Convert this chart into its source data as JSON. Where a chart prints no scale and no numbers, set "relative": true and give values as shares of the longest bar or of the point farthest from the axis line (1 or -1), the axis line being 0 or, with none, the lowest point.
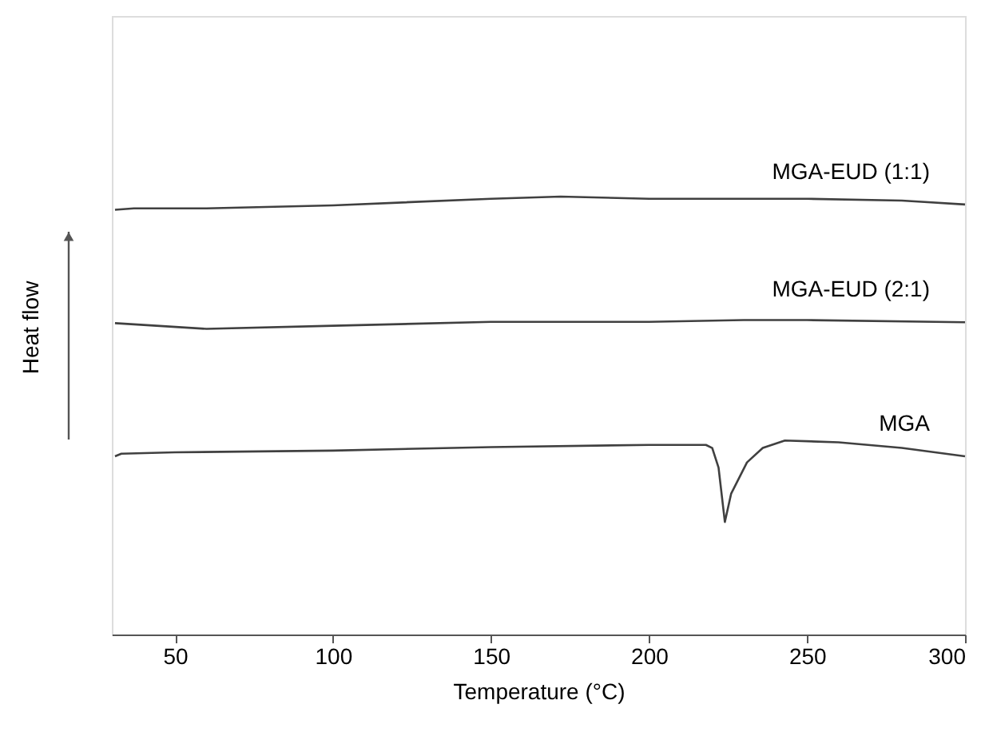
{
  "chart_data": {
    "type": "line",
    "relative": true,
    "xlabel": "Temperature (°C)",
    "ylabel": "Heat flow",
    "xlim": [
      30,
      300
    ],
    "xticks": [
      50,
      100,
      150,
      200,
      250,
      300
    ],
    "grid": false,
    "legend": false,
    "tick_labels": "x",
    "line_style": "solid",
    "marker": "none",
    "series": [
      {
        "name": "MGA-EUD (1:1)",
        "color": "#404040",
        "x": [
          31,
          37,
          60,
          100,
          150,
          172,
          200,
          250,
          280,
          300
        ],
        "values": [
          0.97,
          0.973,
          0.973,
          0.98,
          0.995,
          1,
          0.995,
          0.995,
          0.991,
          0.982
        ]
      },
      {
        "name": "MGA-EUD (2:1)",
        "color": "#404040",
        "x": [
          31,
          60,
          100,
          150,
          200,
          230,
          250,
          300
        ],
        "values": [
          0.711,
          0.698,
          0.705,
          0.714,
          0.714,
          0.718,
          0.718,
          0.713
        ]
      },
      {
        "name": "MGA",
        "color": "#404040",
        "x": [
          31,
          33,
          50,
          100,
          150,
          200,
          218,
          220,
          222,
          224,
          226,
          231,
          236,
          243,
          260,
          280,
          300
        ],
        "values": [
          0.407,
          0.413,
          0.416,
          0.42,
          0.428,
          0.433,
          0.433,
          0.426,
          0.381,
          0.257,
          0.322,
          0.393,
          0.426,
          0.443,
          0.439,
          0.426,
          0.407
        ]
      }
    ]
  }
}
